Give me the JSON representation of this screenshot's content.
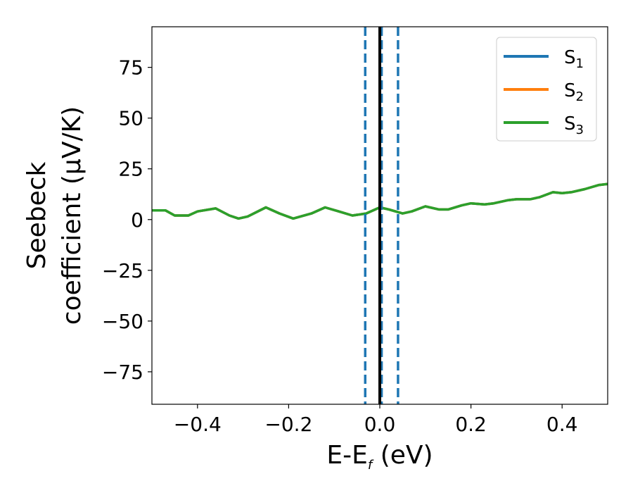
{
  "chart_data": {
    "type": "line",
    "xlabel": {
      "main": "E-E",
      "sub": "f",
      "suffix": " (eV)"
    },
    "ylabel": {
      "line1": "Seebeck",
      "line2": "coefficient  (μV/K)"
    },
    "xlim": [
      -0.5,
      0.5
    ],
    "ylim": [
      -91,
      95
    ],
    "xticks": [
      -0.4,
      -0.2,
      0.0,
      0.2,
      0.4
    ],
    "xtick_labels": [
      "−0.4",
      "−0.2",
      "0.0",
      "0.2",
      "0.4"
    ],
    "yticks": [
      75,
      50,
      25,
      0,
      -25,
      -50,
      -75
    ],
    "ytick_labels": [
      "75",
      "50",
      "25",
      "0",
      "−25",
      "−50",
      "−75"
    ],
    "grid": false,
    "legend_position": "top-right",
    "vertical_lines": [
      {
        "x": -0.032,
        "style": "dashed",
        "color": "#1f77b4"
      },
      {
        "x": 0.004,
        "style": "dashed",
        "color": "#1f77b4"
      },
      {
        "x": 0.04,
        "style": "dashed",
        "color": "#1f77b4"
      },
      {
        "x": 0.0,
        "style": "solid",
        "color": "#000000"
      }
    ],
    "x": [
      -0.5,
      -0.47,
      -0.45,
      -0.42,
      -0.4,
      -0.36,
      -0.33,
      -0.31,
      -0.29,
      -0.25,
      -0.22,
      -0.19,
      -0.15,
      -0.12,
      -0.09,
      -0.06,
      -0.03,
      0.0,
      0.02,
      0.05,
      0.07,
      0.1,
      0.13,
      0.15,
      0.18,
      0.2,
      0.23,
      0.25,
      0.28,
      0.3,
      0.33,
      0.35,
      0.38,
      0.4,
      0.42,
      0.45,
      0.48,
      0.5
    ],
    "series": [
      {
        "name": "S",
        "sub": "1",
        "color": "#1f77b4",
        "values": [
          4.5,
          4.5,
          2,
          2,
          4,
          5.5,
          2,
          0.5,
          1.5,
          6,
          3,
          0.5,
          3,
          6,
          4,
          2,
          3,
          6,
          5,
          3,
          4,
          6.5,
          5,
          5,
          7,
          8,
          7.5,
          8,
          9.5,
          10,
          10,
          11,
          13.5,
          13,
          13.5,
          15,
          17,
          17.5
        ]
      },
      {
        "name": "S",
        "sub": "2",
        "color": "#ff7f0e",
        "values": [
          4.5,
          4.5,
          2,
          2,
          4,
          5.5,
          2,
          0.5,
          1.5,
          6,
          3,
          0.5,
          3,
          6,
          4,
          2,
          3,
          6,
          5,
          3,
          4,
          6.5,
          5,
          5,
          7,
          8,
          7.5,
          8,
          9.5,
          10,
          10,
          11,
          13.5,
          13,
          13.5,
          15,
          17,
          17.5
        ]
      },
      {
        "name": "S",
        "sub": "3",
        "color": "#2ca02c",
        "values": [
          4.5,
          4.5,
          2,
          2,
          4,
          5.5,
          2,
          0.5,
          1.5,
          6,
          3,
          0.5,
          3,
          6,
          4,
          2,
          3,
          6,
          5,
          3,
          4,
          6.5,
          5,
          5,
          7,
          8,
          7.5,
          8,
          9.5,
          10,
          10,
          11,
          13.5,
          13,
          13.5,
          15,
          17,
          17.5
        ]
      }
    ]
  }
}
